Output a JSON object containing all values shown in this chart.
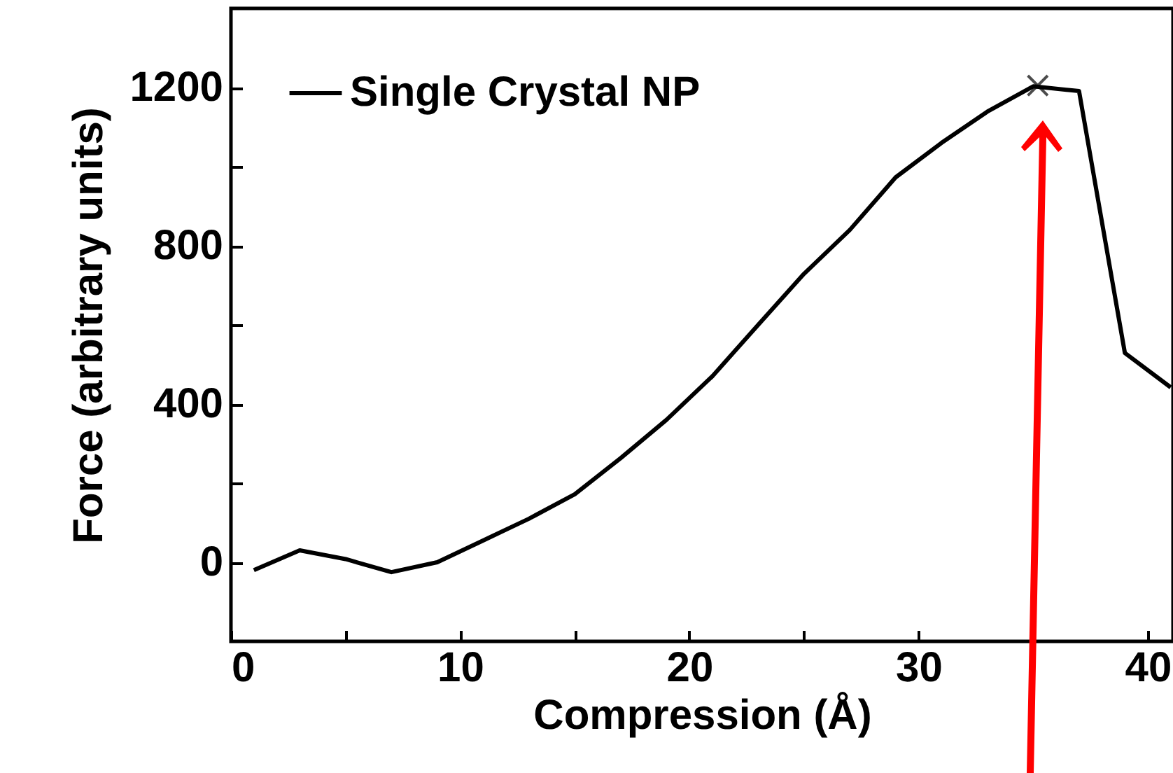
{
  "chart_data": {
    "type": "line",
    "xlabel": "Compression (Å)",
    "ylabel": "Force (arbitrary units)",
    "xlim": [
      0,
      41.1
    ],
    "ylim": [
      -200,
      1400
    ],
    "xticks": [
      0,
      {
        "value": 5,
        "label": null
      },
      10,
      {
        "value": 15,
        "label": null
      },
      20,
      {
        "value": 25,
        "label": null
      },
      30,
      {
        "value": 35,
        "label": null
      },
      40
    ],
    "yticks": [
      0,
      {
        "value": 200,
        "label": null
      },
      400,
      {
        "value": 600,
        "label": null
      },
      800,
      {
        "value": 1000,
        "label": null
      },
      1200
    ],
    "legend": "top left",
    "grid": false,
    "series": [
      {
        "name": "Single Crystal NP",
        "color": "#000000",
        "x": [
          1,
          3,
          5,
          7,
          9,
          11,
          13,
          15,
          17,
          19,
          21,
          23,
          25,
          27,
          29,
          31,
          33,
          35,
          37,
          39,
          41
        ],
        "values": [
          -20,
          30,
          8,
          -25,
          0,
          55,
          110,
          172,
          263,
          360,
          470,
          600,
          729,
          840,
          973,
          1060,
          1139,
          1203,
          1191,
          529,
          442
        ]
      },
      {
        "type": "scatter",
        "marker": "cross",
        "color": "#000000",
        "x": [
          35.2
        ],
        "values": [
          1205
        ]
      }
    ]
  }
}
